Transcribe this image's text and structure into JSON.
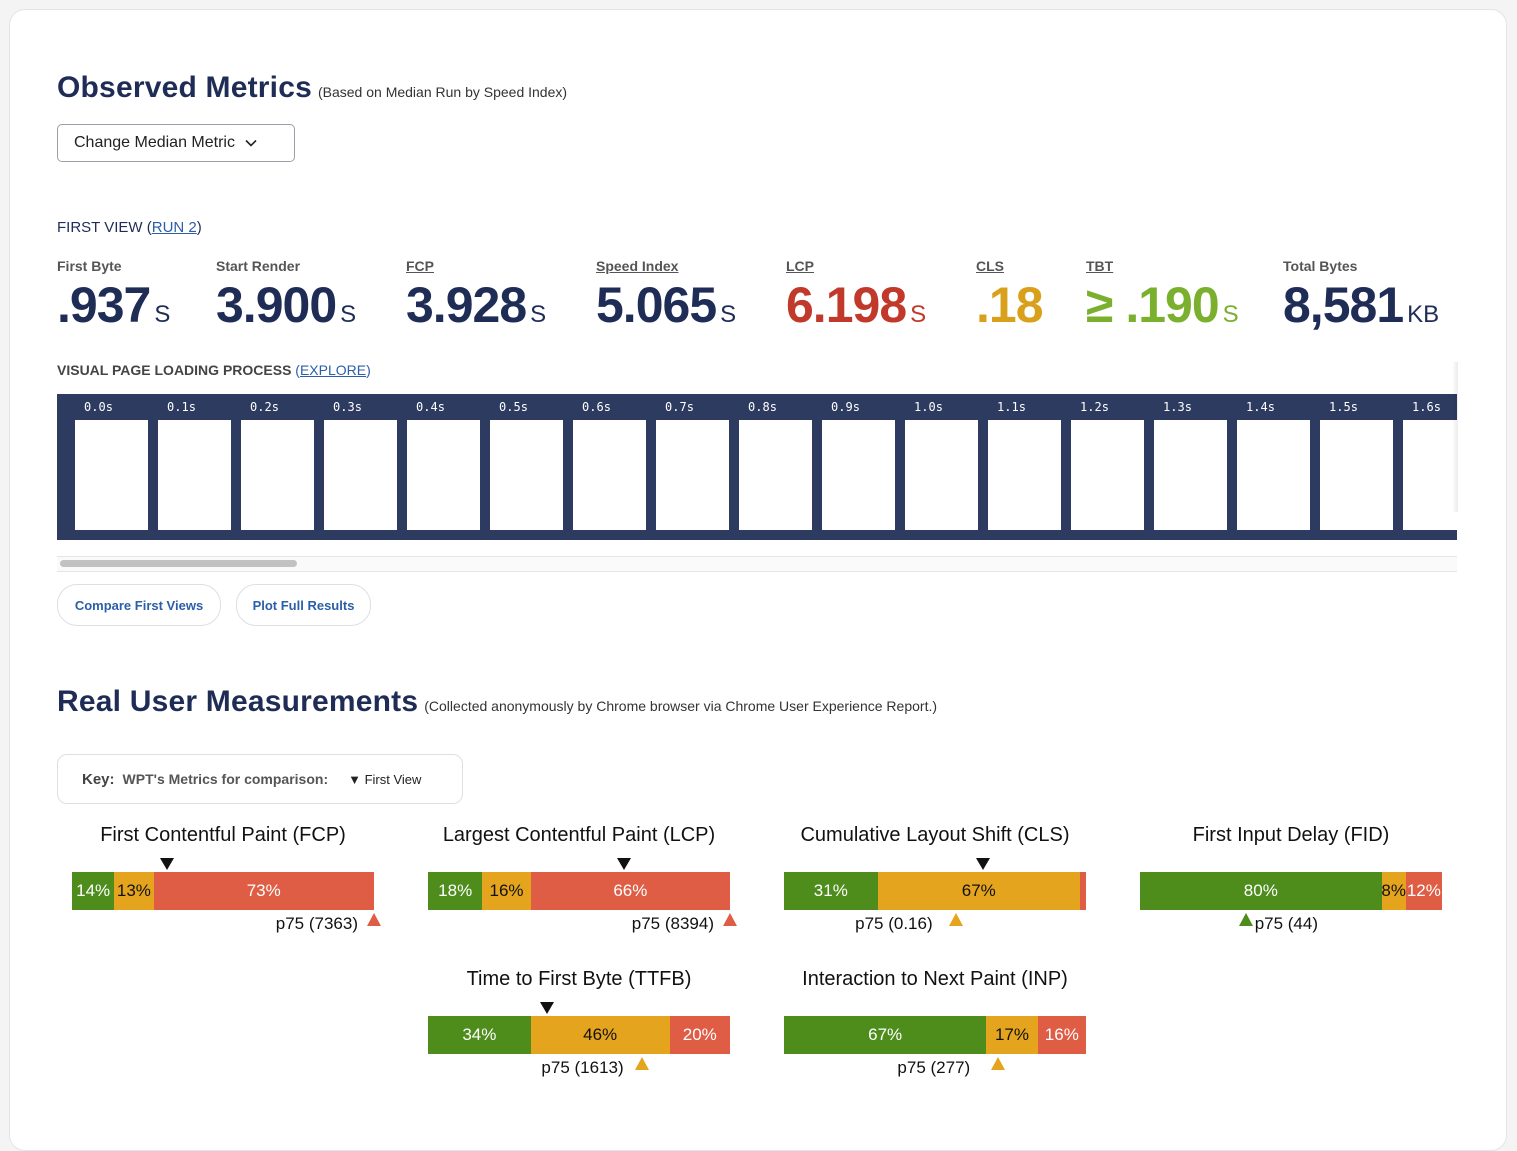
{
  "observed": {
    "title": "Observed Metrics",
    "subtitle": "(Based on Median Run by Speed Index)",
    "change_median_label": "Change Median Metric",
    "view_label": "FIRST VIEW (",
    "run_link": "RUN 2",
    "view_close": ")",
    "metrics": [
      {
        "label": "First Byte",
        "value": ".937",
        "unit": "S",
        "color": "#1f2d56"
      },
      {
        "label": "Start Render",
        "value": "3.900",
        "unit": "S",
        "color": "#1f2d56"
      },
      {
        "label": "FCP",
        "value": "3.928",
        "unit": "S",
        "color": "#1f2d56"
      },
      {
        "label": "Speed Index",
        "value": "5.065",
        "unit": "S",
        "color": "#1f2d56"
      },
      {
        "label": "LCP",
        "value": "6.198",
        "unit": "S",
        "color": "#c0392b"
      },
      {
        "label": "CLS",
        "value": ".18",
        "unit": "",
        "color": "#d9a01c"
      },
      {
        "label": "TBT",
        "value": "≥ .190",
        "unit": "S",
        "color": "#7ab02e"
      },
      {
        "label": "Total Bytes",
        "value": "8,581",
        "unit": "KB",
        "color": "#1f2d56"
      }
    ],
    "visual_label": "VISUAL PAGE LOADING PROCESS",
    "explore_open": "(",
    "explore_link": "EXPLORE",
    "explore_close": ")",
    "frames": [
      "0.0s",
      "0.1s",
      "0.2s",
      "0.3s",
      "0.4s",
      "0.5s",
      "0.6s",
      "0.7s",
      "0.8s",
      "0.9s",
      "1.0s",
      "1.1s",
      "1.2s",
      "1.3s",
      "1.4s",
      "1.5s",
      "1.6s"
    ],
    "compare_button": "Compare First Views",
    "plot_button": "Plot Full Results"
  },
  "rum": {
    "title": "Real User Measurements",
    "subtitle": "(Collected anonymously by Chrome browser via Chrome User Experience Report.)",
    "key_label": "Key:",
    "key_desc": "WPT's Metrics for comparison:",
    "key_first_view": "▼ First View",
    "colors": {
      "good": "#4e8d1c",
      "needs_improvement": "#e5a41d",
      "poor": "#df5d45"
    },
    "metrics": [
      {
        "title": "First Contentful Paint (FCP)",
        "segments": [
          {
            "cls": "good",
            "pct": 14,
            "label": "14%"
          },
          {
            "cls": "ni",
            "pct": 13,
            "label": "13%"
          },
          {
            "cls": "poor",
            "pct": 73,
            "label": "73%"
          }
        ],
        "marker_pct": 31.5,
        "p75": "p75 (7363)",
        "p75_class": "poor",
        "p75_pct": 100
      },
      {
        "title": "Largest Contentful Paint (LCP)",
        "segments": [
          {
            "cls": "good",
            "pct": 18,
            "label": "18%"
          },
          {
            "cls": "ni",
            "pct": 16,
            "label": "16%"
          },
          {
            "cls": "poor",
            "pct": 66,
            "label": "66%"
          }
        ],
        "marker_pct": 65,
        "p75": "p75 (8394)",
        "p75_class": "poor",
        "p75_pct": 100
      },
      {
        "title": "Cumulative Layout Shift (CLS)",
        "segments": [
          {
            "cls": "good",
            "pct": 31,
            "label": "31%"
          },
          {
            "cls": "ni",
            "pct": 67,
            "label": "67%"
          },
          {
            "cls": "poor",
            "pct": 2,
            "label": ""
          }
        ],
        "marker_pct": 66,
        "p75": "p75 (0.16)",
        "p75_class": "ni",
        "p75_pct": 57
      },
      {
        "title": "First Input Delay (FID)",
        "segments": [
          {
            "cls": "good",
            "pct": 80,
            "label": "80%"
          },
          {
            "cls": "ni",
            "pct": 8,
            "label": "8%"
          },
          {
            "cls": "poor",
            "pct": 12,
            "label": "12%"
          }
        ],
        "marker_pct": null,
        "p75": "p75 (44)",
        "p75_class": "good",
        "p75_pct": 35
      },
      {
        "title": "Time to First Byte (TTFB)",
        "segments": [
          {
            "cls": "good",
            "pct": 34,
            "label": "34%"
          },
          {
            "cls": "ni",
            "pct": 46,
            "label": "46%"
          },
          {
            "cls": "poor",
            "pct": 20,
            "label": "20%"
          }
        ],
        "marker_pct": 39.5,
        "p75": "p75 (1613)",
        "p75_class": "ni",
        "p75_pct": 71
      },
      {
        "title": "Interaction to Next Paint (INP)",
        "segments": [
          {
            "cls": "good",
            "pct": 67,
            "label": "67%"
          },
          {
            "cls": "ni",
            "pct": 17,
            "label": "17%"
          },
          {
            "cls": "poor",
            "pct": 16,
            "label": "16%"
          }
        ],
        "marker_pct": null,
        "p75": "p75 (277)",
        "p75_class": "ni",
        "p75_pct": 71
      }
    ]
  }
}
